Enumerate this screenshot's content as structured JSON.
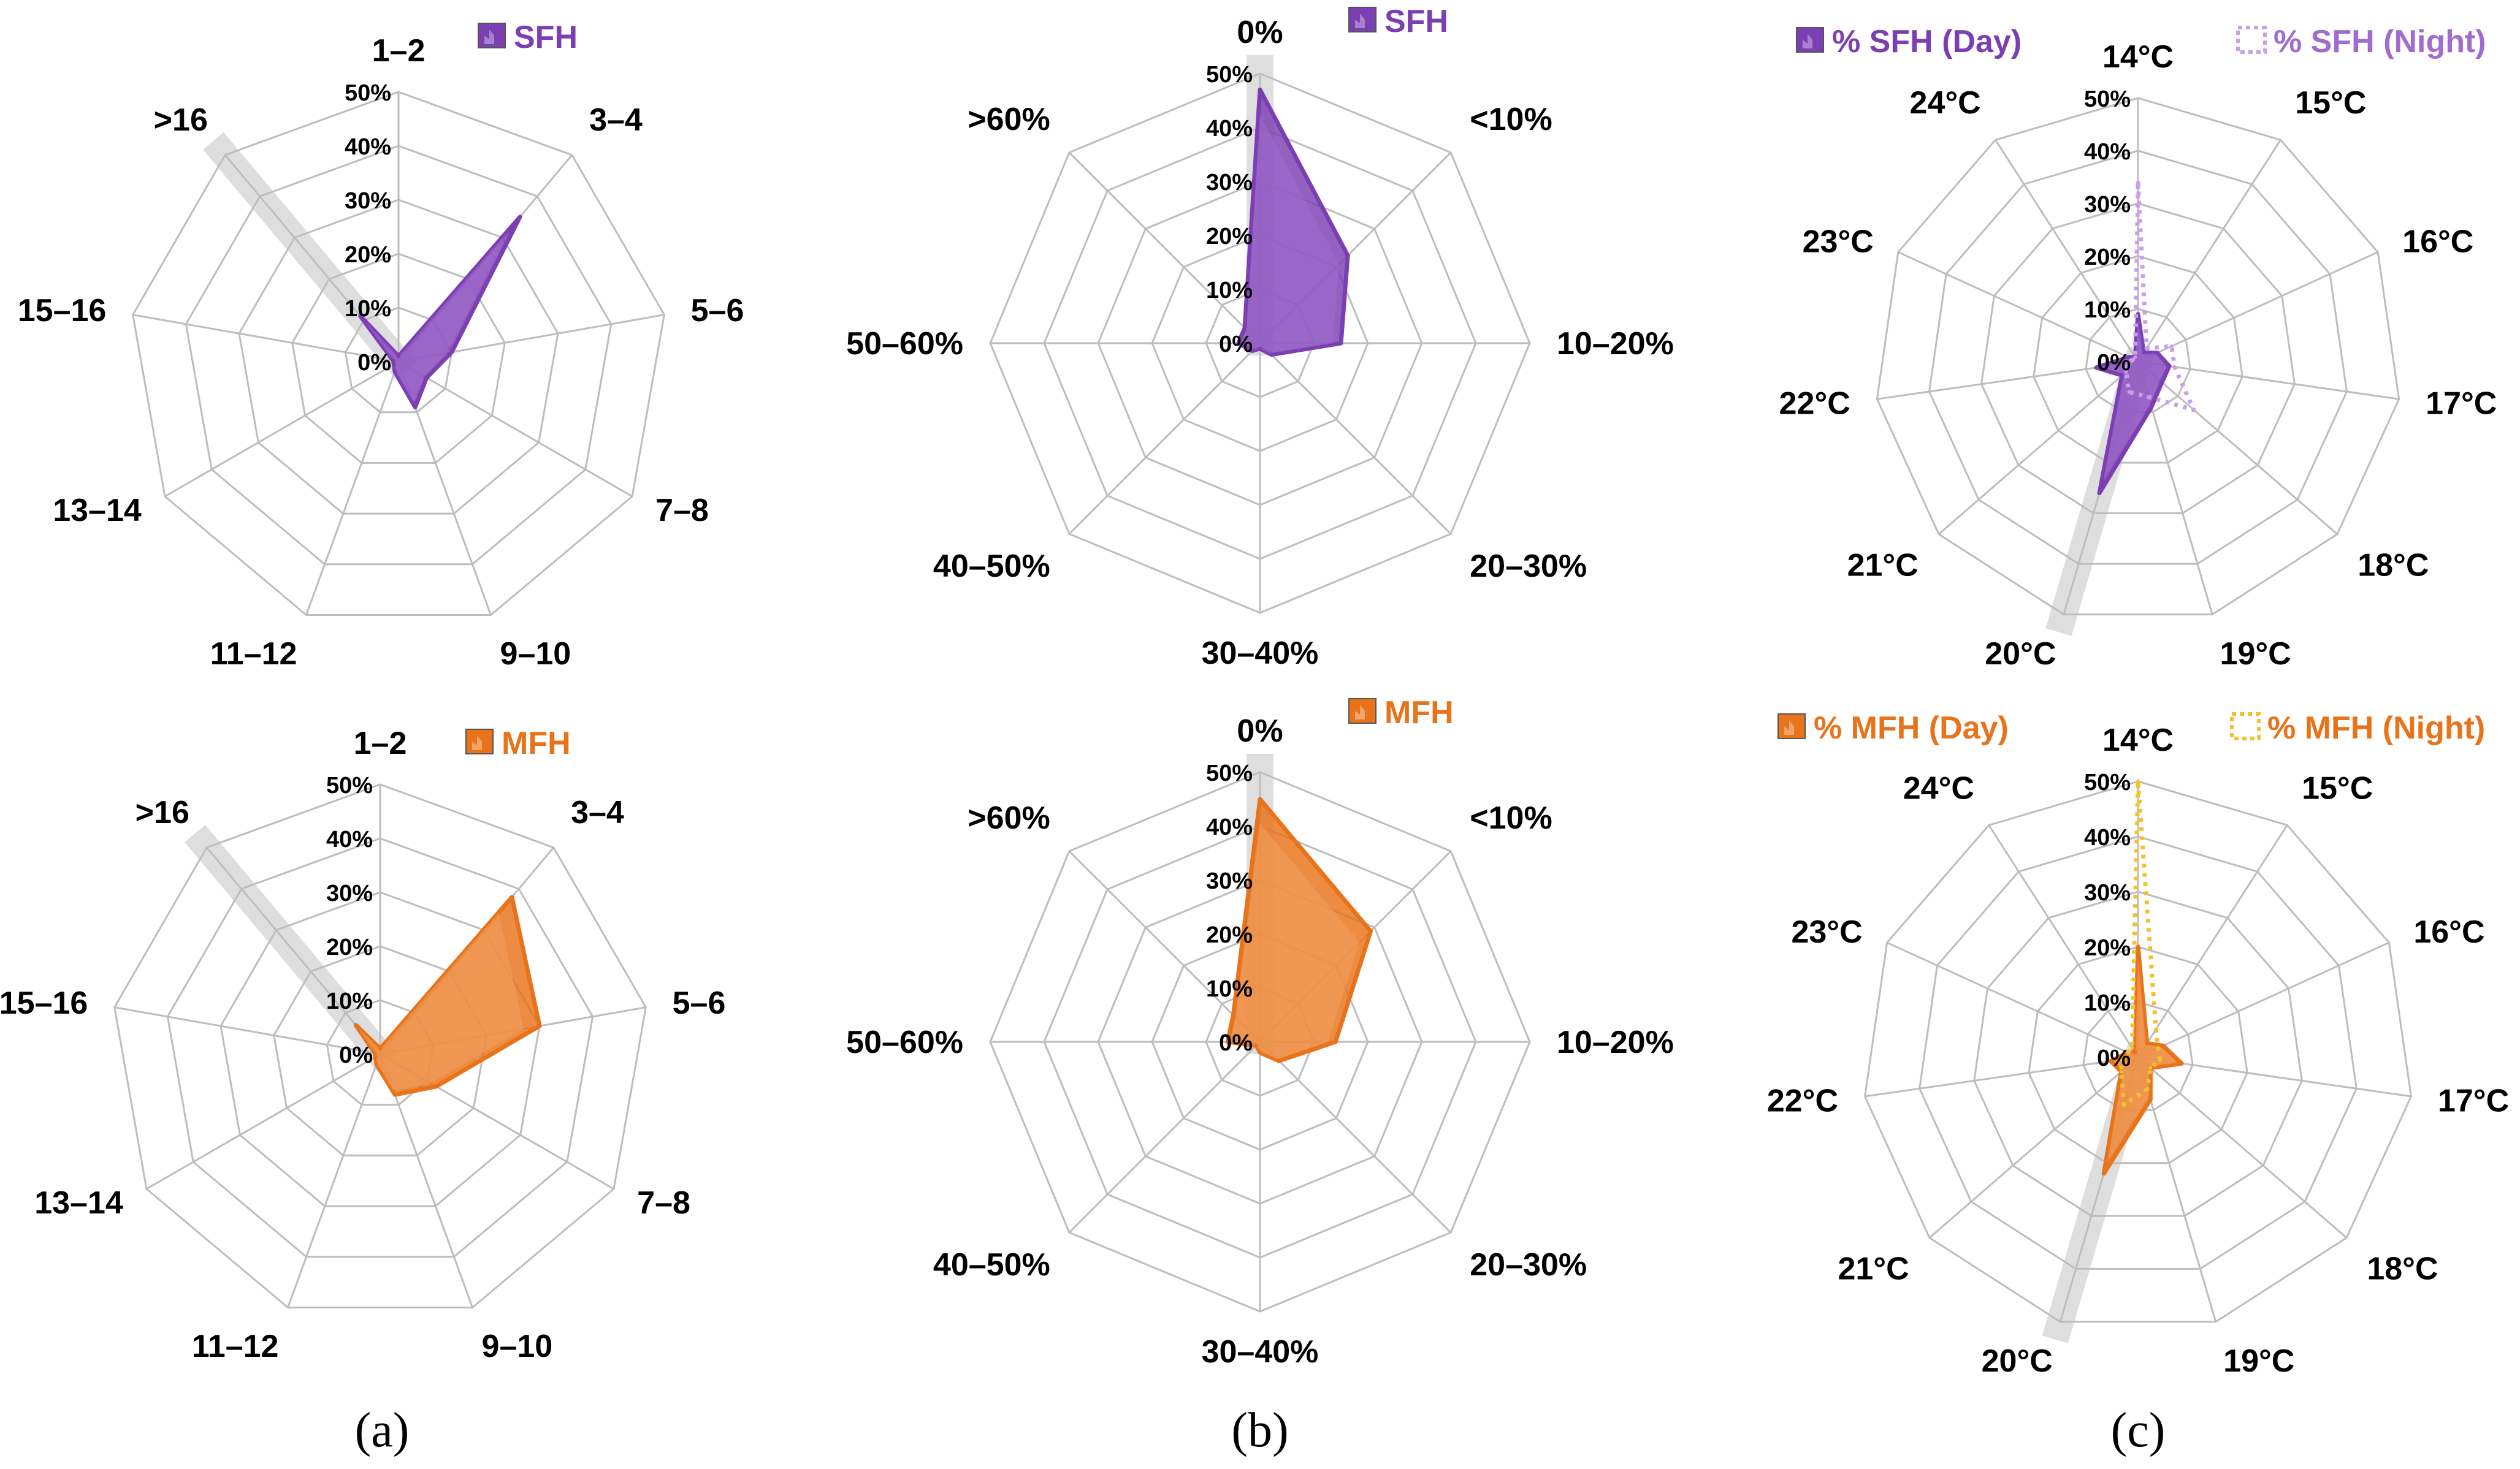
{
  "figure": {
    "panel_labels": [
      "(a)",
      "(b)",
      "(c)"
    ]
  },
  "colors": {
    "sfh": "#7B3FB3",
    "sfh_light": "#A06CD0",
    "sfh_night": "#C9A0E8",
    "mfh": "#E8731A",
    "mfh_light": "#F3A15E",
    "mfh_night": "#F2C12E",
    "grid": "#BDBDBD",
    "highlight": "#D9D9D9"
  },
  "chart_data": [
    {
      "id": "a-sfh",
      "type": "radar",
      "panel": "(a)",
      "categories": [
        "1–2",
        "3–4",
        "5–6",
        "7–8",
        "9–10",
        "11–12",
        "13–14",
        "15–16",
        ">16"
      ],
      "rticks": [
        "0%",
        "10%",
        "20%",
        "30%",
        "40%",
        "50%"
      ],
      "rlim": [
        0,
        50
      ],
      "highlight_category": ">16",
      "series": [
        {
          "name": "SFH",
          "legend": "SFH",
          "style": "filled",
          "color_key": "sfh",
          "values": [
            1,
            35,
            10,
            6,
            9,
            2,
            1,
            1,
            11
          ]
        }
      ]
    },
    {
      "id": "b-sfh",
      "type": "radar",
      "panel": "(b)",
      "categories": [
        "0%",
        "<10%",
        "10–20%",
        "20–30%",
        "30–40%",
        "40–50%",
        "50–60%",
        ">60%"
      ],
      "rticks": [
        "0%",
        "10%",
        "20%",
        "30%",
        "40%",
        "50%"
      ],
      "rlim": [
        0,
        50
      ],
      "highlight_category": "0%",
      "series": [
        {
          "name": "SFH",
          "legend": "SFH",
          "style": "filled",
          "color_key": "sfh",
          "values": [
            47,
            23,
            15,
            3,
            1,
            2,
            4,
            4
          ]
        }
      ]
    },
    {
      "id": "c-sfh",
      "type": "radar",
      "panel": "(c)",
      "categories": [
        "14°C",
        "15°C",
        "16°C",
        "17°C",
        "18°C",
        "19°C",
        "20°C",
        "21°C",
        "22°C",
        "23°C",
        "24°C"
      ],
      "rticks": [
        "0%",
        "10%",
        "20%",
        "30%",
        "40%",
        "50%"
      ],
      "rlim": [
        0,
        50
      ],
      "highlight_category": "20°C",
      "series": [
        {
          "name": "% SFH (Day)",
          "legend": "% SFH (Day)",
          "style": "filled",
          "color_key": "sfh",
          "values": [
            9,
            2,
            4,
            6,
            6,
            9,
            26,
            4,
            8,
            2,
            1
          ]
        },
        {
          "name": "% SFH (Night)",
          "legend": "% SFH (Night)",
          "style": "dotted",
          "color_key": "sfh_night",
          "values": [
            34,
            3,
            7,
            7,
            14,
            7,
            6,
            3,
            2,
            1,
            1
          ]
        }
      ]
    },
    {
      "id": "a-mfh",
      "type": "radar",
      "panel": "(a)",
      "categories": [
        "1–2",
        "3–4",
        "5–6",
        "7–8",
        "9–10",
        "11–12",
        "13–14",
        "15–16",
        ">16"
      ],
      "rticks": [
        "0%",
        "10%",
        "20%",
        "30%",
        "40%",
        "50%"
      ],
      "rlim": [
        0,
        50
      ],
      "highlight_category": ">16",
      "series": [
        {
          "name": "MFH",
          "legend": "MFH",
          "style": "filled",
          "color_key": "mfh",
          "values": [
            1,
            38,
            30,
            12,
            8,
            2,
            1,
            1,
            7
          ]
        }
      ]
    },
    {
      "id": "b-mfh",
      "type": "radar",
      "panel": "(b)",
      "categories": [
        "0%",
        "<10%",
        "10–20%",
        "20–30%",
        "30–40%",
        "40–50%",
        "50–60%",
        ">60%"
      ],
      "rticks": [
        "0%",
        "10%",
        "20%",
        "30%",
        "40%",
        "50%"
      ],
      "rlim": [
        0,
        50
      ],
      "highlight_category": "0%",
      "series": [
        {
          "name": "MFH",
          "legend": "MFH",
          "style": "filled",
          "color_key": "mfh",
          "values": [
            45,
            29,
            14,
            5,
            2,
            1,
            6,
            7
          ]
        }
      ]
    },
    {
      "id": "c-mfh",
      "type": "radar",
      "panel": "(c)",
      "categories": [
        "14°C",
        "15°C",
        "16°C",
        "17°C",
        "18°C",
        "19°C",
        "20°C",
        "21°C",
        "22°C",
        "23°C",
        "24°C"
      ],
      "rticks": [
        "0%",
        "10%",
        "20%",
        "30%",
        "40%",
        "50%"
      ],
      "rlim": [
        0,
        50
      ],
      "highlight_category": "20°C",
      "series": [
        {
          "name": "% MFH (Day)",
          "legend": "% MFH (Day)",
          "style": "filled",
          "color_key": "mfh",
          "values": [
            20,
            3,
            5,
            8,
            3,
            8,
            22,
            4,
            5,
            2,
            1
          ]
        },
        {
          "name": "% MFH (Night)",
          "legend": "% MFH (Night)",
          "style": "dotted",
          "color_key": "mfh_night",
          "values": [
            50,
            6,
            4,
            4,
            3,
            6,
            9,
            4,
            3,
            2,
            2
          ]
        }
      ]
    }
  ]
}
